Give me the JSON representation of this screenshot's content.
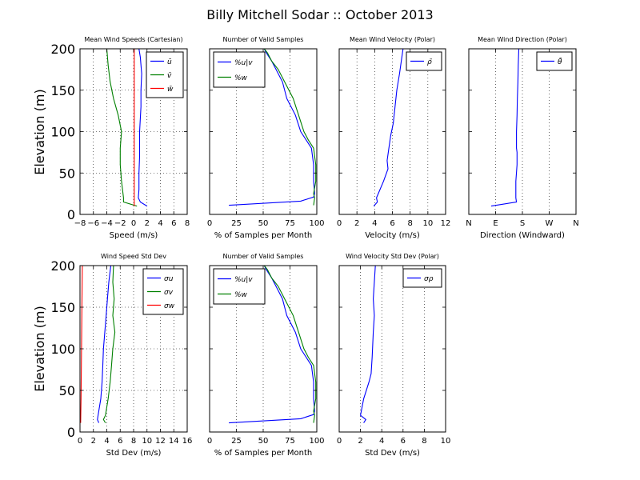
{
  "figure": {
    "title": "Billy Mitchell Sodar :: October 2013",
    "ylabel": "Elevation (m)"
  },
  "colors": {
    "blue": "#0000ff",
    "green": "#008000",
    "red": "#ff0000"
  },
  "chart_data": [
    {
      "id": "p1",
      "type": "line",
      "title": "Mean Wind Speeds (Cartesian)",
      "xlabel": "Speed (m/s)",
      "xlim": [
        -8,
        8
      ],
      "ylim": [
        0,
        200
      ],
      "xticks": [
        -8,
        -6,
        -4,
        -2,
        0,
        2,
        4,
        6,
        8
      ],
      "xticklabels": [
        "−8",
        "−6",
        "−4",
        "−2",
        "0",
        "2",
        "4",
        "6",
        "8"
      ],
      "yticks": [
        0,
        50,
        100,
        150,
        200
      ],
      "show_ylabels": true,
      "grid": "both",
      "legend": {
        "loc": "upper right",
        "labels": [
          "ū",
          "v̄",
          "w̄"
        ]
      },
      "series": [
        {
          "name": "ū",
          "color": "blue",
          "points": [
            [
              2.0,
              10
            ],
            [
              1.0,
              15
            ],
            [
              0.7,
              20
            ],
            [
              0.8,
              30
            ],
            [
              0.8,
              50
            ],
            [
              0.9,
              70
            ],
            [
              0.9,
              100
            ],
            [
              1.1,
              130
            ],
            [
              1.1,
              150
            ],
            [
              1.2,
              170
            ],
            [
              1.0,
              190
            ],
            [
              0.8,
              200
            ]
          ]
        },
        {
          "name": "v̄",
          "color": "green",
          "points": [
            [
              0.5,
              10
            ],
            [
              -1.5,
              15
            ],
            [
              -1.5,
              20
            ],
            [
              -1.8,
              40
            ],
            [
              -2.0,
              60
            ],
            [
              -2.0,
              80
            ],
            [
              -1.8,
              100
            ],
            [
              -2.3,
              120
            ],
            [
              -3.0,
              140
            ],
            [
              -3.5,
              160
            ],
            [
              -3.8,
              180
            ],
            [
              -4.0,
              200
            ]
          ]
        },
        {
          "name": "w̄",
          "color": "red",
          "points": [
            [
              0.1,
              10
            ],
            [
              0.1,
              30
            ],
            [
              0.1,
              60
            ],
            [
              0.1,
              100
            ],
            [
              0.1,
              150
            ],
            [
              0.1,
              200
            ]
          ]
        }
      ]
    },
    {
      "id": "p2",
      "type": "line",
      "title": "Number of Valid Samples",
      "xlabel": "% of Samples per Month",
      "xlim": [
        0,
        100
      ],
      "ylim": [
        0,
        200
      ],
      "xticks": [
        0,
        25,
        50,
        75,
        100
      ],
      "xticklabels": [
        "0",
        "25",
        "50",
        "75",
        "100"
      ],
      "yticks": [
        0,
        50,
        100,
        150,
        200
      ],
      "show_ylabels": false,
      "grid": "x",
      "legend": {
        "loc": "upper left",
        "labels": [
          "%u|v",
          "%w"
        ]
      },
      "series": [
        {
          "name": "%u|v",
          "color": "blue",
          "points": [
            [
              18,
              11
            ],
            [
              85,
              16
            ],
            [
              97,
              21
            ],
            [
              98,
              25
            ],
            [
              97,
              40
            ],
            [
              97,
              60
            ],
            [
              95,
              80
            ],
            [
              90,
              90
            ],
            [
              85,
              100
            ],
            [
              80,
              120
            ],
            [
              72,
              140
            ],
            [
              68,
              160
            ],
            [
              62,
              175
            ],
            [
              58,
              185
            ],
            [
              53,
              195
            ],
            [
              51,
              200
            ]
          ]
        },
        {
          "name": "%w",
          "color": "green",
          "points": [
            [
              97,
              11
            ],
            [
              98,
              20
            ],
            [
              97,
              25
            ],
            [
              99,
              40
            ],
            [
              99,
              60
            ],
            [
              97,
              80
            ],
            [
              92,
              90
            ],
            [
              88,
              100
            ],
            [
              83,
              120
            ],
            [
              78,
              140
            ],
            [
              70,
              160
            ],
            [
              64,
              175
            ],
            [
              58,
              185
            ],
            [
              54,
              195
            ],
            [
              51,
              200
            ]
          ]
        }
      ]
    },
    {
      "id": "p3",
      "type": "line",
      "title": "Mean Wind Velocity (Polar)",
      "xlabel": "Velocity (m/s)",
      "xlim": [
        0,
        12
      ],
      "ylim": [
        0,
        200
      ],
      "xticks": [
        0,
        2,
        4,
        6,
        8,
        10,
        12
      ],
      "xticklabels": [
        "0",
        "2",
        "4",
        "6",
        "8",
        "10",
        "12"
      ],
      "yticks": [
        0,
        50,
        100,
        150,
        200
      ],
      "show_ylabels": false,
      "grid": "x",
      "legend": {
        "loc": "upper right",
        "labels": [
          "ρ̄"
        ]
      },
      "series": [
        {
          "name": "ρ̄",
          "color": "blue",
          "points": [
            [
              3.9,
              10
            ],
            [
              4.3,
              15
            ],
            [
              4.2,
              20
            ],
            [
              4.4,
              25
            ],
            [
              5.0,
              40
            ],
            [
              5.5,
              55
            ],
            [
              5.4,
              65
            ],
            [
              5.6,
              80
            ],
            [
              5.8,
              95
            ],
            [
              6.1,
              110
            ],
            [
              6.3,
              130
            ],
            [
              6.5,
              150
            ],
            [
              6.8,
              170
            ],
            [
              7.0,
              185
            ],
            [
              7.2,
              200
            ]
          ]
        }
      ]
    },
    {
      "id": "p4",
      "type": "line",
      "title": "Mean Wind Direction (Polar)",
      "xlabel": "Direction (Windward)",
      "xlim": [
        0,
        360
      ],
      "ylim": [
        0,
        200
      ],
      "xticks": [
        0,
        90,
        180,
        270,
        360
      ],
      "xticklabels": [
        "N",
        "E",
        "S",
        "W",
        "N"
      ],
      "yticks": [
        0,
        50,
        100,
        150,
        200
      ],
      "show_ylabels": false,
      "grid": "x",
      "legend": {
        "loc": "upper right",
        "labels": [
          "θ̄"
        ]
      },
      "series": [
        {
          "name": "θ̄",
          "color": "blue",
          "points": [
            [
              75,
              10
            ],
            [
              160,
              15
            ],
            [
              158,
              20
            ],
            [
              158,
              40
            ],
            [
              162,
              60
            ],
            [
              162,
              75
            ],
            [
              160,
              80
            ],
            [
              160,
              100
            ],
            [
              162,
              120
            ],
            [
              163,
              140
            ],
            [
              165,
              160
            ],
            [
              166,
              180
            ],
            [
              168,
              200
            ]
          ]
        }
      ]
    },
    {
      "id": "p5",
      "type": "line",
      "title": "Wind Speed Std Dev",
      "xlabel": "Std Dev (m/s)",
      "xlim": [
        0,
        16
      ],
      "ylim": [
        0,
        200
      ],
      "xticks": [
        0,
        2,
        4,
        6,
        8,
        10,
        12,
        14,
        16
      ],
      "xticklabels": [
        "0",
        "2",
        "4",
        "6",
        "8",
        "10",
        "12",
        "14",
        "16"
      ],
      "yticks": [
        0,
        50,
        100,
        150,
        200
      ],
      "show_ylabels": true,
      "grid": "both",
      "legend": {
        "loc": "upper right",
        "labels": [
          "σu",
          "σv",
          "σw"
        ]
      },
      "series": [
        {
          "name": "σu",
          "color": "blue",
          "points": [
            [
              2.8,
              11
            ],
            [
              2.6,
              15
            ],
            [
              2.7,
              20
            ],
            [
              3.1,
              40
            ],
            [
              3.3,
              60
            ],
            [
              3.4,
              80
            ],
            [
              3.5,
              100
            ],
            [
              3.7,
              120
            ],
            [
              3.9,
              140
            ],
            [
              4.1,
              160
            ],
            [
              4.3,
              180
            ],
            [
              4.6,
              200
            ]
          ]
        },
        {
          "name": "σv",
          "color": "green",
          "points": [
            [
              3.8,
              11
            ],
            [
              3.5,
              15
            ],
            [
              3.8,
              20
            ],
            [
              4.2,
              40
            ],
            [
              4.5,
              60
            ],
            [
              4.7,
              80
            ],
            [
              4.9,
              100
            ],
            [
              5.2,
              120
            ],
            [
              4.9,
              140
            ],
            [
              5.1,
              160
            ],
            [
              4.9,
              180
            ],
            [
              5.0,
              200
            ]
          ]
        },
        {
          "name": "σw",
          "color": "red",
          "points": [
            [
              0.1,
              11
            ],
            [
              0.15,
              40
            ],
            [
              0.2,
              80
            ],
            [
              0.25,
              120
            ],
            [
              0.3,
              160
            ],
            [
              0.35,
              200
            ]
          ]
        }
      ]
    },
    {
      "id": "p6",
      "type": "line",
      "title": "Number of Valid Samples",
      "xlabel": "% of Samples per Month",
      "xlim": [
        0,
        100
      ],
      "ylim": [
        0,
        200
      ],
      "xticks": [
        0,
        25,
        50,
        75,
        100
      ],
      "xticklabels": [
        "0",
        "25",
        "50",
        "75",
        "100"
      ],
      "yticks": [
        0,
        50,
        100,
        150,
        200
      ],
      "show_ylabels": false,
      "grid": "x",
      "legend": {
        "loc": "upper left",
        "labels": [
          "%u|v",
          "%w"
        ]
      },
      "series": [
        {
          "name": "%u|v",
          "color": "blue",
          "points": [
            [
              18,
              11
            ],
            [
              85,
              16
            ],
            [
              97,
              21
            ],
            [
              98,
              25
            ],
            [
              97,
              40
            ],
            [
              97,
              60
            ],
            [
              95,
              80
            ],
            [
              90,
              90
            ],
            [
              85,
              100
            ],
            [
              80,
              120
            ],
            [
              72,
              140
            ],
            [
              68,
              160
            ],
            [
              62,
              175
            ],
            [
              58,
              185
            ],
            [
              53,
              195
            ],
            [
              51,
              200
            ]
          ]
        },
        {
          "name": "%w",
          "color": "green",
          "points": [
            [
              97,
              11
            ],
            [
              98,
              20
            ],
            [
              97,
              25
            ],
            [
              99,
              40
            ],
            [
              99,
              60
            ],
            [
              97,
              80
            ],
            [
              92,
              90
            ],
            [
              88,
              100
            ],
            [
              83,
              120
            ],
            [
              78,
              140
            ],
            [
              70,
              160
            ],
            [
              64,
              175
            ],
            [
              58,
              185
            ],
            [
              54,
              195
            ],
            [
              51,
              200
            ]
          ]
        }
      ]
    },
    {
      "id": "p7",
      "type": "line",
      "title": "Wind Velocity Std Dev (Polar)",
      "xlabel": "Std Dev (m/s)",
      "xlim": [
        0,
        10
      ],
      "ylim": [
        0,
        200
      ],
      "xticks": [
        0,
        2,
        4,
        6,
        8,
        10
      ],
      "xticklabels": [
        "0",
        "2",
        "4",
        "6",
        "8",
        "10"
      ],
      "yticks": [
        0,
        50,
        100,
        150,
        200
      ],
      "show_ylabels": false,
      "grid": "x",
      "legend": {
        "loc": "upper right",
        "labels": [
          "σρ"
        ]
      },
      "series": [
        {
          "name": "σρ",
          "color": "blue",
          "points": [
            [
              2.3,
              11
            ],
            [
              2.5,
              15
            ],
            [
              2.0,
              20
            ],
            [
              2.3,
              40
            ],
            [
              2.8,
              60
            ],
            [
              3.0,
              70
            ],
            [
              3.1,
              90
            ],
            [
              3.2,
              120
            ],
            [
              3.3,
              140
            ],
            [
              3.2,
              160
            ],
            [
              3.3,
              180
            ],
            [
              3.4,
              200
            ]
          ]
        }
      ]
    }
  ]
}
